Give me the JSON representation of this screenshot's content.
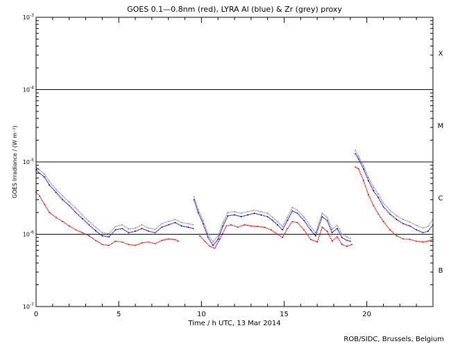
{
  "chart_data": {
    "type": "line",
    "title": "GOES 0.1—0.8nm (red), LYRA Al (blue) & Zr (grey) proxy",
    "xlabel": "Time / h UTC, 13 Mar 2014",
    "ylabel": "GOES Irradiance / (W m⁻²)",
    "credit": "ROB/SIDC, Brussels, Belgium",
    "xlim": [
      0,
      24
    ],
    "ylim": [
      1e-07,
      0.001
    ],
    "yscale": "log",
    "x_ticks": [
      0,
      5,
      10,
      15,
      20
    ],
    "y_ticks": [
      {
        "value": 1e-07,
        "mantissa": "10",
        "exp": "-7"
      },
      {
        "value": 1e-06,
        "mantissa": "10",
        "exp": "-6"
      },
      {
        "value": 1e-05,
        "mantissa": "10",
        "exp": "-5"
      },
      {
        "value": 0.0001,
        "mantissa": "10",
        "exp": "-4"
      },
      {
        "value": 0.001,
        "mantissa": "10",
        "exp": "-3"
      }
    ],
    "reference_lines": [
      1e-06,
      1e-05,
      0.0001
    ],
    "flare_classes": [
      {
        "label": "B",
        "value": 3.2e-07
      },
      {
        "label": "C",
        "value": 3.2e-06
      },
      {
        "label": "M",
        "value": 3.2e-05
      },
      {
        "label": "X",
        "value": 0.00032
      }
    ],
    "series": [
      {
        "color": "#e00000",
        "points": [
          [
            0.0,
            3.8e-06
          ],
          [
            0.2,
            3.4e-06
          ],
          [
            0.5,
            2.6e-06
          ],
          [
            0.8,
            2e-06
          ],
          [
            1.2,
            1.7e-06
          ],
          [
            1.6,
            1.5e-06
          ],
          [
            2.0,
            1.3e-06
          ],
          [
            2.4,
            1.15e-06
          ],
          [
            2.8,
            1.05e-06
          ],
          [
            3.2,
            9.5e-07
          ],
          [
            3.6,
            8.2e-07
          ],
          [
            4.0,
            7.2e-07
          ],
          [
            4.4,
            7e-07
          ],
          [
            4.8,
            8e-07
          ],
          [
            5.2,
            7.8e-07
          ],
          [
            5.6,
            7.2e-07
          ],
          [
            6.0,
            7e-07
          ],
          [
            6.4,
            7.6e-07
          ],
          [
            6.8,
            7.8e-07
          ],
          [
            7.2,
            7.4e-07
          ],
          [
            7.6,
            8.2e-07
          ],
          [
            8.0,
            8.6e-07
          ],
          [
            8.4,
            8.4e-07
          ],
          [
            8.6,
            8e-07
          ],
          null,
          [
            9.9,
            9.5e-07
          ],
          [
            10.2,
            8e-07
          ],
          [
            10.5,
            6.8e-07
          ],
          [
            10.8,
            6.4e-07
          ],
          [
            11.1,
            8.5e-07
          ],
          [
            11.5,
            1.3e-06
          ],
          [
            11.8,
            1.35e-06
          ],
          [
            12.2,
            1.25e-06
          ],
          [
            12.6,
            1.35e-06
          ],
          [
            13.0,
            1.3e-06
          ],
          [
            13.4,
            1.28e-06
          ],
          [
            13.8,
            1.25e-06
          ],
          [
            14.2,
            1.15e-06
          ],
          [
            14.6,
            1e-06
          ],
          [
            14.9,
            9e-07
          ],
          [
            15.2,
            1.2e-06
          ],
          [
            15.5,
            1.5e-06
          ],
          [
            15.8,
            1.45e-06
          ],
          [
            16.2,
            1.15e-06
          ],
          [
            16.6,
            8.5e-07
          ],
          [
            17.0,
            7.8e-07
          ],
          [
            17.3,
            1.25e-06
          ],
          [
            17.6,
            1.1e-06
          ],
          [
            17.9,
            8e-07
          ],
          [
            18.2,
            9.2e-07
          ],
          [
            18.5,
            7.2e-07
          ],
          [
            18.8,
            6.8e-07
          ],
          [
            19.1,
            7.2e-07
          ],
          null,
          [
            19.3,
            8.5e-06
          ],
          [
            19.5,
            8e-06
          ],
          [
            19.8,
            5.5e-06
          ],
          [
            20.1,
            3.5e-06
          ],
          [
            20.4,
            2.5e-06
          ],
          [
            20.7,
            1.9e-06
          ],
          [
            21.0,
            1.5e-06
          ],
          [
            21.4,
            1.15e-06
          ],
          [
            21.8,
            9.5e-07
          ],
          [
            22.2,
            8.6e-07
          ],
          [
            22.6,
            8.5e-07
          ],
          [
            23.0,
            8e-07
          ],
          [
            23.4,
            7.8e-07
          ],
          [
            23.7,
            8e-07
          ],
          [
            24.0,
            8.5e-07
          ]
        ]
      },
      {
        "color": "#0000cc",
        "points": [
          [
            0.0,
            7.8e-06
          ],
          [
            0.2,
            7e-06
          ],
          [
            0.5,
            6.2e-06
          ],
          [
            0.8,
            4.8e-06
          ],
          [
            1.2,
            3.8e-06
          ],
          [
            1.6,
            3e-06
          ],
          [
            2.0,
            2.5e-06
          ],
          [
            2.4,
            2e-06
          ],
          [
            2.8,
            1.65e-06
          ],
          [
            3.2,
            1.35e-06
          ],
          [
            3.6,
            1.12e-06
          ],
          [
            4.0,
            9.5e-07
          ],
          [
            4.4,
            9.2e-07
          ],
          [
            4.8,
            1.15e-06
          ],
          [
            5.2,
            1.2e-06
          ],
          [
            5.6,
            1.05e-06
          ],
          [
            6.0,
            1.1e-06
          ],
          [
            6.4,
            1.2e-06
          ],
          [
            6.8,
            1.1e-06
          ],
          [
            7.2,
            1.05e-06
          ],
          [
            7.6,
            1.25e-06
          ],
          [
            8.0,
            1.35e-06
          ],
          [
            8.4,
            1.45e-06
          ],
          [
            8.8,
            1.3e-06
          ],
          [
            9.2,
            1.25e-06
          ],
          [
            9.5,
            1.2e-06
          ],
          null,
          [
            9.55,
            3e-06
          ],
          [
            9.8,
            2e-06
          ],
          [
            10.1,
            1.4e-06
          ],
          [
            10.4,
            9e-07
          ],
          [
            10.7,
            7e-07
          ],
          [
            11.0,
            8.5e-07
          ],
          [
            11.3,
            1.3e-06
          ],
          [
            11.6,
            1.8e-06
          ],
          [
            12.0,
            1.85e-06
          ],
          [
            12.4,
            1.75e-06
          ],
          [
            12.8,
            1.85e-06
          ],
          [
            13.2,
            1.95e-06
          ],
          [
            13.6,
            1.85e-06
          ],
          [
            14.0,
            1.75e-06
          ],
          [
            14.3,
            1.55e-06
          ],
          [
            14.6,
            1.35e-06
          ],
          [
            14.9,
            1.15e-06
          ],
          [
            15.2,
            1.55e-06
          ],
          [
            15.5,
            2.1e-06
          ],
          [
            15.8,
            1.95e-06
          ],
          [
            16.2,
            1.55e-06
          ],
          [
            16.6,
            1.15e-06
          ],
          [
            16.9,
            9.5e-07
          ],
          [
            17.3,
            1.75e-06
          ],
          [
            17.6,
            1.55e-06
          ],
          [
            17.9,
            1.05e-06
          ],
          [
            18.2,
            1.2e-06
          ],
          [
            18.5,
            9e-07
          ],
          [
            18.8,
            8.2e-07
          ],
          [
            19.0,
            8e-07
          ],
          null,
          [
            19.3,
            1.3e-05
          ],
          [
            19.5,
            1.1e-05
          ],
          [
            19.8,
            8e-06
          ],
          [
            20.1,
            5.5e-06
          ],
          [
            20.4,
            4e-06
          ],
          [
            20.7,
            3.2e-06
          ],
          [
            21.0,
            2.4e-06
          ],
          [
            21.4,
            1.9e-06
          ],
          [
            21.8,
            1.6e-06
          ],
          [
            22.2,
            1.4e-06
          ],
          [
            22.6,
            1.3e-06
          ],
          [
            23.0,
            1.15e-06
          ],
          [
            23.4,
            1.05e-06
          ],
          [
            23.7,
            1.1e-06
          ],
          [
            24.0,
            1.35e-06
          ]
        ]
      },
      {
        "color": "#8c8c8c",
        "points": [
          [
            0.0,
            8.5e-06
          ],
          [
            0.2,
            7.8e-06
          ],
          [
            0.5,
            6.8e-06
          ],
          [
            0.8,
            5.4e-06
          ],
          [
            1.2,
            4.2e-06
          ],
          [
            1.6,
            3.4e-06
          ],
          [
            2.0,
            2.8e-06
          ],
          [
            2.4,
            2.3e-06
          ],
          [
            2.8,
            1.85e-06
          ],
          [
            3.2,
            1.5e-06
          ],
          [
            3.6,
            1.25e-06
          ],
          [
            4.0,
            1.05e-06
          ],
          [
            4.4,
            1.02e-06
          ],
          [
            4.8,
            1.28e-06
          ],
          [
            5.2,
            1.35e-06
          ],
          [
            5.6,
            1.18e-06
          ],
          [
            6.0,
            1.22e-06
          ],
          [
            6.4,
            1.35e-06
          ],
          [
            6.8,
            1.22e-06
          ],
          [
            7.2,
            1.17e-06
          ],
          [
            7.6,
            1.4e-06
          ],
          [
            8.0,
            1.5e-06
          ],
          [
            8.4,
            1.6e-06
          ],
          [
            8.8,
            1.45e-06
          ],
          [
            9.2,
            1.4e-06
          ],
          [
            9.5,
            1.35e-06
          ],
          null,
          [
            9.55,
            3.3e-06
          ],
          [
            9.8,
            2.2e-06
          ],
          [
            10.1,
            1.55e-06
          ],
          [
            10.4,
            1e-06
          ],
          [
            10.7,
            7.8e-07
          ],
          [
            11.0,
            9.5e-07
          ],
          [
            11.3,
            1.45e-06
          ],
          [
            11.6,
            2e-06
          ],
          [
            12.0,
            2.05e-06
          ],
          [
            12.4,
            1.95e-06
          ],
          [
            12.8,
            2.05e-06
          ],
          [
            13.2,
            2.15e-06
          ],
          [
            13.6,
            2.05e-06
          ],
          [
            14.0,
            1.95e-06
          ],
          [
            14.3,
            1.72e-06
          ],
          [
            14.6,
            1.5e-06
          ],
          [
            14.9,
            1.28e-06
          ],
          [
            15.2,
            1.72e-06
          ],
          [
            15.5,
            2.35e-06
          ],
          [
            15.8,
            2.15e-06
          ],
          [
            16.2,
            1.72e-06
          ],
          [
            16.6,
            1.28e-06
          ],
          [
            16.9,
            1.05e-06
          ],
          [
            17.3,
            1.95e-06
          ],
          [
            17.6,
            1.72e-06
          ],
          [
            17.9,
            1.17e-06
          ],
          [
            18.2,
            1.33e-06
          ],
          [
            18.5,
            1e-06
          ],
          [
            18.8,
            9.2e-07
          ],
          [
            19.0,
            8.8e-07
          ],
          null,
          [
            19.3,
            1.45e-05
          ],
          [
            19.5,
            1.2e-05
          ],
          [
            19.8,
            8.8e-06
          ],
          [
            20.1,
            6.1e-06
          ],
          [
            20.4,
            4.5e-06
          ],
          [
            20.7,
            3.6e-06
          ],
          [
            21.0,
            2.7e-06
          ],
          [
            21.4,
            2.15e-06
          ],
          [
            21.8,
            1.8e-06
          ],
          [
            22.2,
            1.6e-06
          ],
          [
            22.6,
            1.48e-06
          ],
          [
            23.0,
            1.32e-06
          ],
          [
            23.4,
            1.22e-06
          ],
          [
            23.7,
            1.28e-06
          ],
          [
            24.0,
            1.6e-06
          ]
        ]
      }
    ]
  }
}
